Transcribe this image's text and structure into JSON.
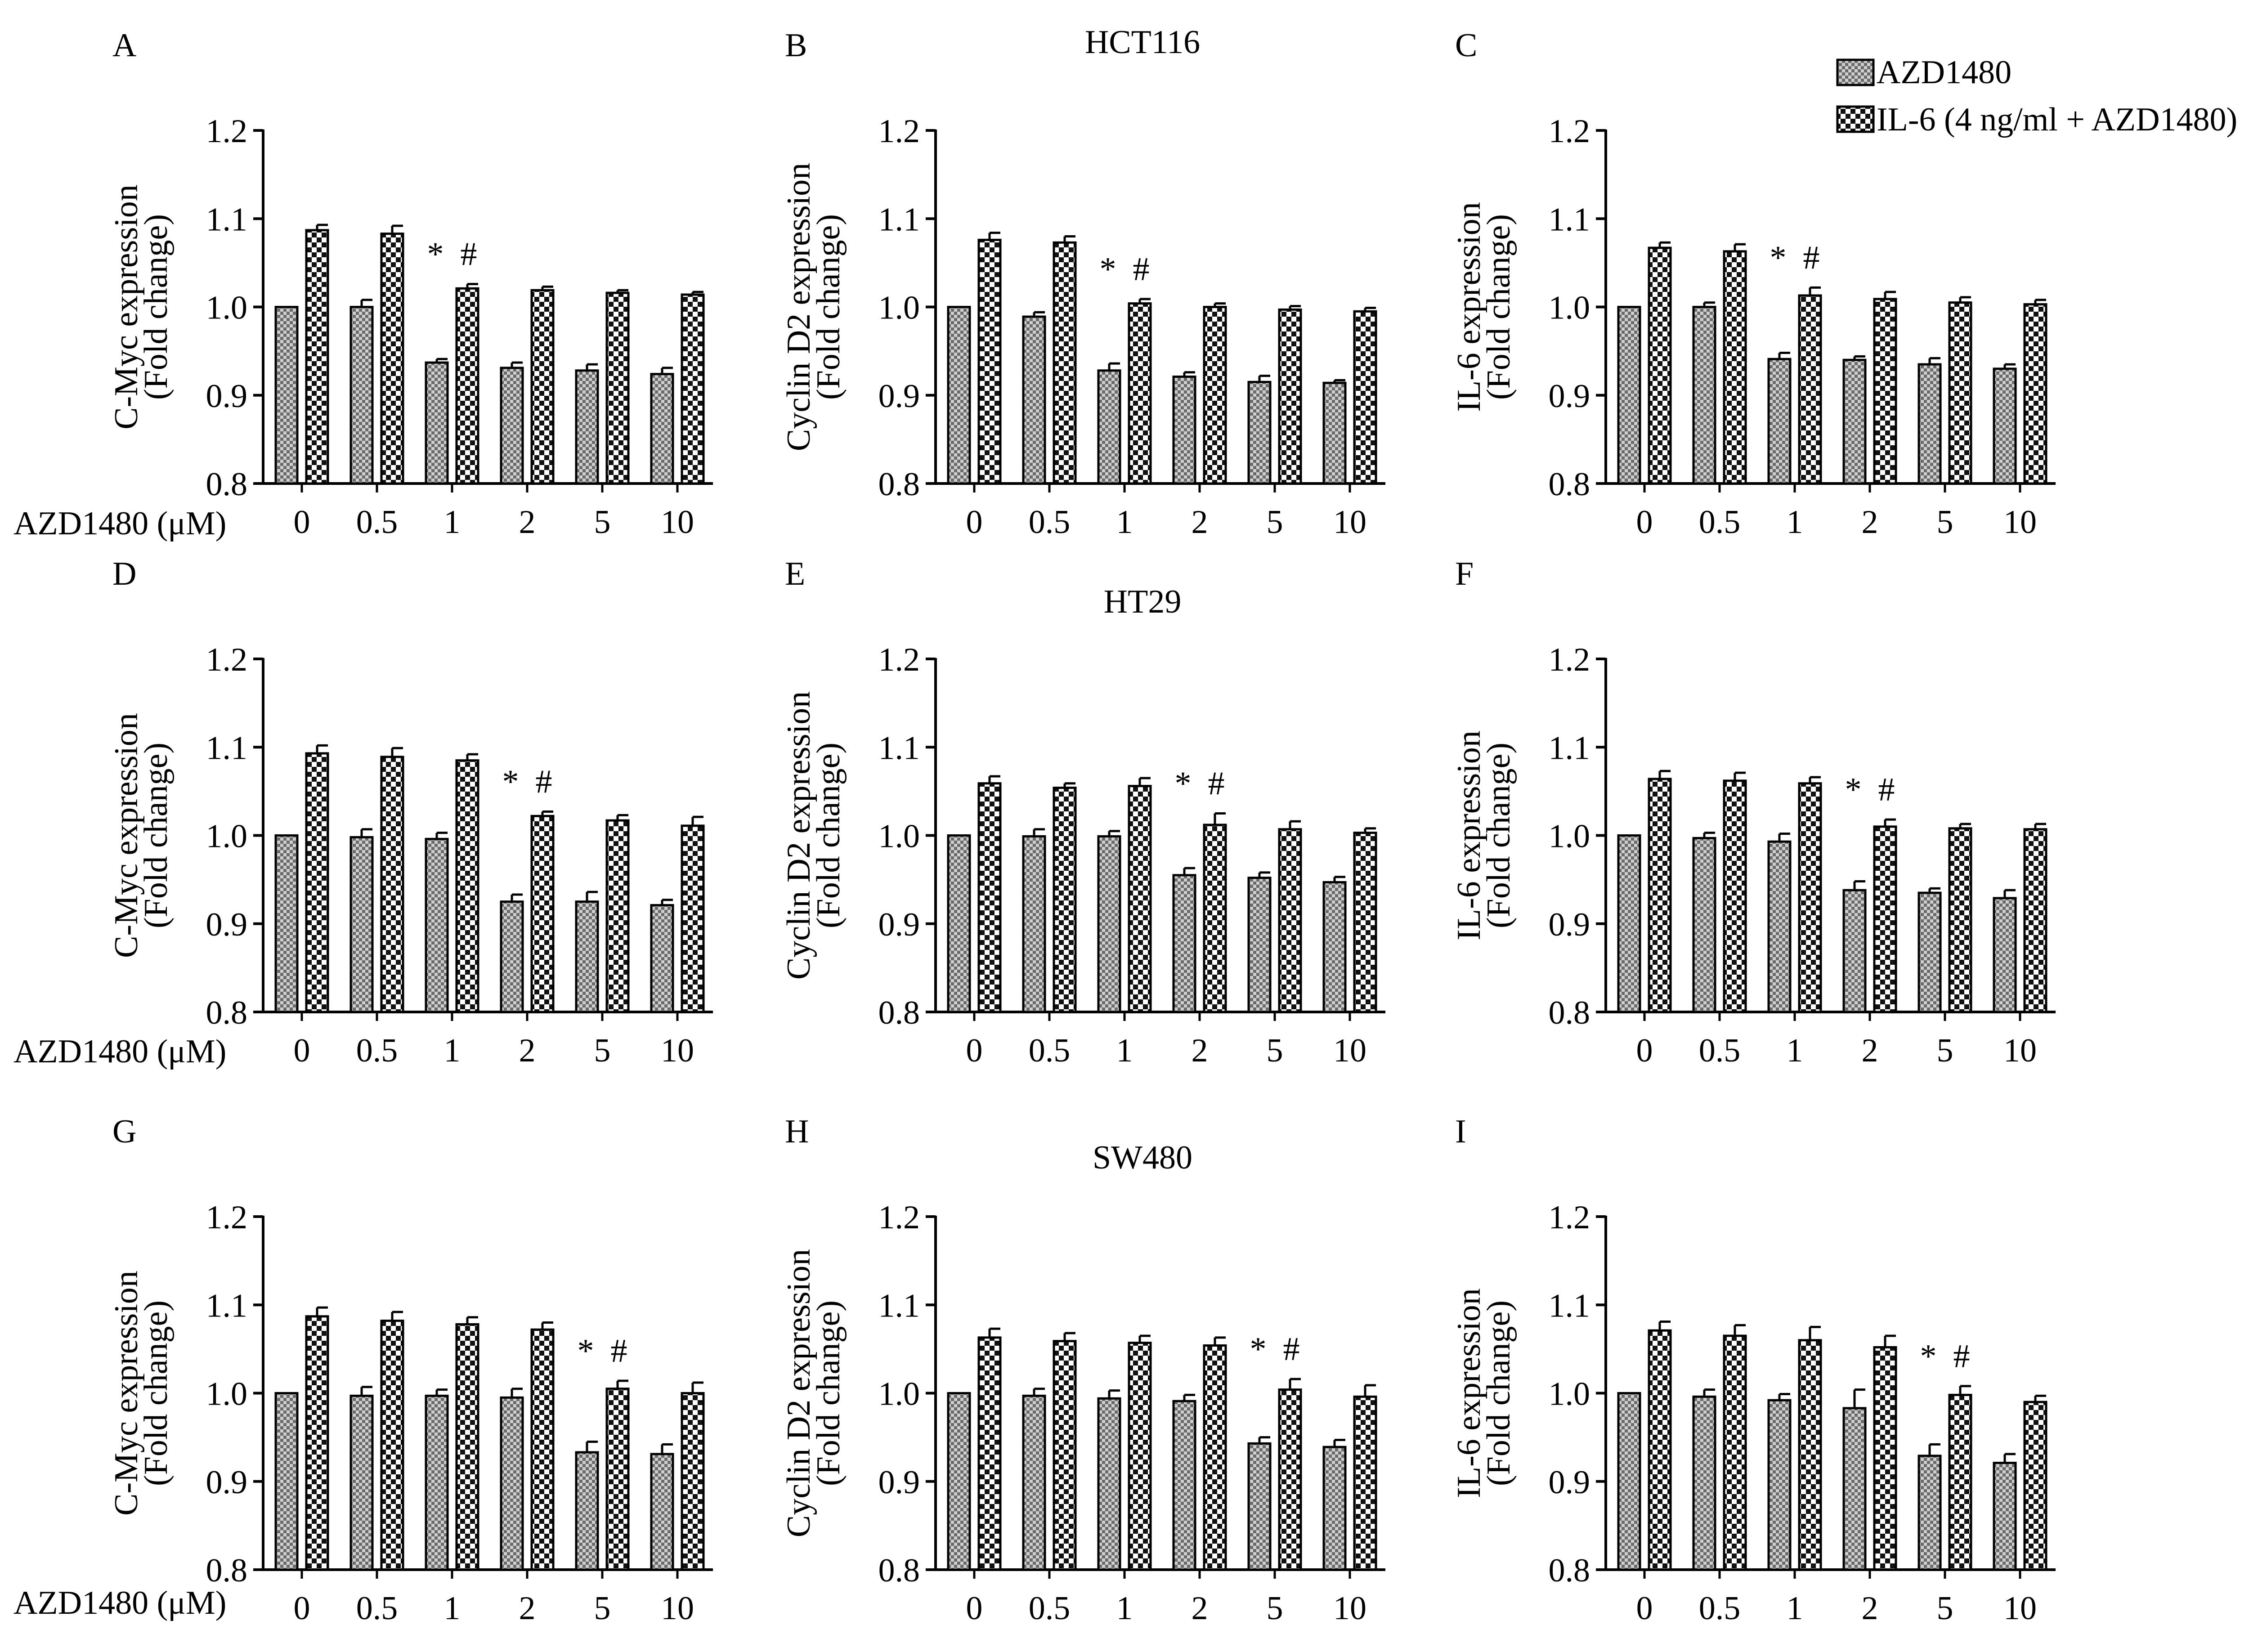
{
  "legend": [
    {
      "label": "AZD1480",
      "pattern": "fine"
    },
    {
      "label": "IL-6 (4 ng/ml + AZD1480)",
      "pattern": "coarse"
    }
  ],
  "x_prefix_label": "AZD1480 (μM)",
  "cell_lines": [
    "HCT116",
    "HT29",
    "SW480"
  ],
  "colors": {
    "ink": "#000000",
    "fine_fill": "#c8c8c8",
    "coarse_fill": "#ffffff"
  },
  "chart_data": [
    {
      "panel": "A",
      "cell_line": "HCT116",
      "type": "bar",
      "ylabel": [
        "C-Myc expression",
        "(Fold change)"
      ],
      "ylim": [
        0.8,
        1.2
      ],
      "yticks": [
        "0.8",
        "0.9",
        "1.0",
        "1.1",
        "1.2"
      ],
      "categories": [
        "0",
        "0.5",
        "1",
        "2",
        "5",
        "10"
      ],
      "series": [
        {
          "name": "AZD1480",
          "values": [
            1.0,
            1.0,
            0.937,
            0.931,
            0.928,
            0.924
          ],
          "errors": [
            0.0,
            0.008,
            0.004,
            0.006,
            0.007,
            0.007
          ]
        },
        {
          "name": "IL-6 (4 ng/ml + AZD1480)",
          "values": [
            1.087,
            1.083,
            1.021,
            1.019,
            1.016,
            1.014
          ],
          "errors": [
            0.006,
            0.009,
            0.005,
            0.004,
            0.003,
            0.003
          ]
        }
      ],
      "annotation": {
        "category": "1",
        "text": "* #"
      }
    },
    {
      "panel": "B",
      "cell_line": "HCT116",
      "type": "bar",
      "ylabel": [
        "Cyclin D2 expression",
        "(Fold change)"
      ],
      "ylim": [
        0.8,
        1.2
      ],
      "yticks": [
        "0.8",
        "0.9",
        "1.0",
        "1.1",
        "1.2"
      ],
      "categories": [
        "0",
        "0.5",
        "1",
        "2",
        "5",
        "10"
      ],
      "series": [
        {
          "name": "AZD1480",
          "values": [
            1.0,
            0.989,
            0.928,
            0.921,
            0.915,
            0.914
          ],
          "errors": [
            0.0,
            0.005,
            0.008,
            0.005,
            0.007,
            0.003
          ]
        },
        {
          "name": "IL-6 (4 ng/ml + AZD1480)",
          "values": [
            1.076,
            1.073,
            1.004,
            1.0,
            0.997,
            0.995
          ],
          "errors": [
            0.008,
            0.007,
            0.005,
            0.004,
            0.004,
            0.004
          ]
        }
      ],
      "annotation": {
        "category": "1",
        "text": "* #"
      }
    },
    {
      "panel": "C",
      "cell_line": "HCT116",
      "type": "bar",
      "ylabel": [
        "IL-6 expression",
        "(Fold change)"
      ],
      "ylim": [
        0.8,
        1.2
      ],
      "yticks": [
        "0.8",
        "0.9",
        "1.0",
        "1.1",
        "1.2"
      ],
      "categories": [
        "0",
        "0.5",
        "1",
        "2",
        "5",
        "10"
      ],
      "series": [
        {
          "name": "AZD1480",
          "values": [
            1.0,
            1.0,
            0.941,
            0.94,
            0.935,
            0.93
          ],
          "errors": [
            0.0,
            0.005,
            0.007,
            0.004,
            0.007,
            0.005
          ]
        },
        {
          "name": "IL-6 (4 ng/ml + AZD1480)",
          "values": [
            1.067,
            1.063,
            1.013,
            1.009,
            1.005,
            1.003
          ],
          "errors": [
            0.006,
            0.008,
            0.009,
            0.008,
            0.006,
            0.005
          ]
        }
      ],
      "annotation": {
        "category": "1",
        "text": "* #"
      }
    },
    {
      "panel": "D",
      "cell_line": "HT29",
      "type": "bar",
      "ylabel": [
        "C-Myc expression",
        "(Fold change)"
      ],
      "ylim": [
        0.8,
        1.2
      ],
      "yticks": [
        "0.8",
        "0.9",
        "1.0",
        "1.1",
        "1.2"
      ],
      "categories": [
        "0",
        "0.5",
        "1",
        "2",
        "5",
        "10"
      ],
      "series": [
        {
          "name": "AZD1480",
          "values": [
            1.0,
            0.998,
            0.996,
            0.925,
            0.925,
            0.921
          ],
          "errors": [
            0.0,
            0.009,
            0.007,
            0.008,
            0.011,
            0.006
          ]
        },
        {
          "name": "IL-6 (4 ng/ml + AZD1480)",
          "values": [
            1.093,
            1.089,
            1.085,
            1.022,
            1.017,
            1.011
          ],
          "errors": [
            0.009,
            0.01,
            0.007,
            0.005,
            0.006,
            0.01
          ]
        }
      ],
      "annotation": {
        "category": "2",
        "text": "* #"
      }
    },
    {
      "panel": "E",
      "cell_line": "HT29",
      "type": "bar",
      "ylabel": [
        "Cyclin D2 expression",
        "(Fold change)"
      ],
      "ylim": [
        0.8,
        1.2
      ],
      "yticks": [
        "0.8",
        "0.9",
        "1.0",
        "1.1",
        "1.2"
      ],
      "categories": [
        "0",
        "0.5",
        "1",
        "2",
        "5",
        "10"
      ],
      "series": [
        {
          "name": "AZD1480",
          "values": [
            1.0,
            0.999,
            0.999,
            0.955,
            0.952,
            0.947
          ],
          "errors": [
            0.0,
            0.008,
            0.006,
            0.008,
            0.006,
            0.006
          ]
        },
        {
          "name": "IL-6 (4 ng/ml + AZD1480)",
          "values": [
            1.059,
            1.054,
            1.056,
            1.012,
            1.007,
            1.003
          ],
          "errors": [
            0.008,
            0.005,
            0.009,
            0.013,
            0.009,
            0.005
          ]
        }
      ],
      "annotation": {
        "category": "2",
        "text": "* #"
      }
    },
    {
      "panel": "F",
      "cell_line": "HT29",
      "type": "bar",
      "ylabel": [
        "IL-6 expression",
        "(Fold change)"
      ],
      "ylim": [
        0.8,
        1.2
      ],
      "yticks": [
        "0.8",
        "0.9",
        "1.0",
        "1.1",
        "1.2"
      ],
      "categories": [
        "0",
        "0.5",
        "1",
        "2",
        "5",
        "10"
      ],
      "series": [
        {
          "name": "AZD1480",
          "values": [
            1.0,
            0.997,
            0.993,
            0.938,
            0.935,
            0.929
          ],
          "errors": [
            0.0,
            0.006,
            0.009,
            0.01,
            0.005,
            0.009
          ]
        },
        {
          "name": "IL-6 (4 ng/ml + AZD1480)",
          "values": [
            1.064,
            1.062,
            1.059,
            1.01,
            1.008,
            1.007
          ],
          "errors": [
            0.009,
            0.009,
            0.007,
            0.008,
            0.005,
            0.006
          ]
        }
      ],
      "annotation": {
        "category": "2",
        "text": "* #"
      }
    },
    {
      "panel": "G",
      "cell_line": "SW480",
      "type": "bar",
      "ylabel": [
        "C-Myc expression",
        "(Fold change)"
      ],
      "ylim": [
        0.8,
        1.2
      ],
      "yticks": [
        "0.8",
        "0.9",
        "1.0",
        "1.1",
        "1.2"
      ],
      "categories": [
        "0",
        "0.5",
        "1",
        "2",
        "5",
        "10"
      ],
      "series": [
        {
          "name": "AZD1480",
          "values": [
            1.0,
            0.997,
            0.997,
            0.995,
            0.933,
            0.931
          ],
          "errors": [
            0.0,
            0.01,
            0.007,
            0.01,
            0.012,
            0.011
          ]
        },
        {
          "name": "IL-6 (4 ng/ml + AZD1480)",
          "values": [
            1.087,
            1.082,
            1.078,
            1.072,
            1.005,
            1.0
          ],
          "errors": [
            0.01,
            0.01,
            0.008,
            0.008,
            0.009,
            0.012
          ]
        }
      ],
      "annotation": {
        "category": "5",
        "text": "* #"
      }
    },
    {
      "panel": "H",
      "cell_line": "SW480",
      "type": "bar",
      "ylabel": [
        "Cyclin D2 expression",
        "(Fold change)"
      ],
      "ylim": [
        0.8,
        1.2
      ],
      "yticks": [
        "0.8",
        "0.9",
        "1.0",
        "1.1",
        "1.2"
      ],
      "categories": [
        "0",
        "0.5",
        "1",
        "2",
        "5",
        "10"
      ],
      "series": [
        {
          "name": "AZD1480",
          "values": [
            1.0,
            0.997,
            0.994,
            0.991,
            0.943,
            0.939
          ],
          "errors": [
            0.0,
            0.008,
            0.009,
            0.007,
            0.007,
            0.008
          ]
        },
        {
          "name": "IL-6 (4 ng/ml + AZD1480)",
          "values": [
            1.063,
            1.059,
            1.057,
            1.054,
            1.004,
            0.996
          ],
          "errors": [
            0.01,
            0.009,
            0.008,
            0.009,
            0.012,
            0.013
          ]
        }
      ],
      "annotation": {
        "category": "5",
        "text": "* #"
      }
    },
    {
      "panel": "I",
      "cell_line": "SW480",
      "type": "bar",
      "ylabel": [
        "IL-6 expression",
        "(Fold change)"
      ],
      "ylim": [
        0.8,
        1.2
      ],
      "yticks": [
        "0.8",
        "0.9",
        "1.0",
        "1.1",
        "1.2"
      ],
      "categories": [
        "0",
        "0.5",
        "1",
        "2",
        "5",
        "10"
      ],
      "series": [
        {
          "name": "AZD1480",
          "values": [
            1.0,
            0.996,
            0.992,
            0.983,
            0.929,
            0.921
          ],
          "errors": [
            0.0,
            0.008,
            0.007,
            0.021,
            0.013,
            0.01
          ]
        },
        {
          "name": "IL-6 (4 ng/ml + AZD1480)",
          "values": [
            1.071,
            1.065,
            1.06,
            1.052,
            0.998,
            0.99
          ],
          "errors": [
            0.01,
            0.012,
            0.015,
            0.013,
            0.01,
            0.007
          ]
        }
      ],
      "annotation": {
        "category": "5",
        "text": "* #"
      }
    }
  ]
}
